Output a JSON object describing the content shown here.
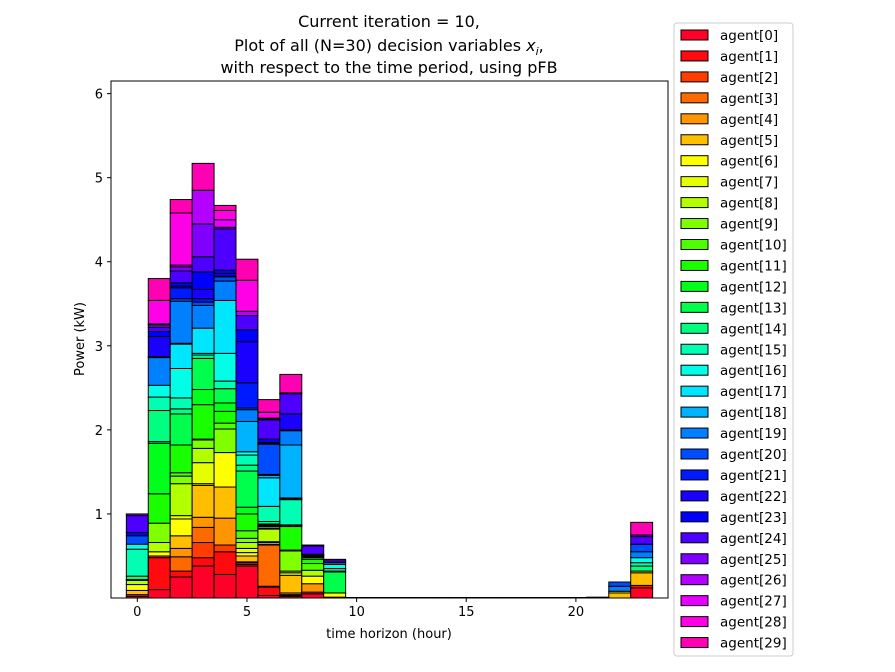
{
  "chart_data": {
    "type": "bar",
    "stacked": true,
    "title_lines": [
      "Current iteration = 10,",
      "Plot of all (N=30) decision variables x_i,",
      "with respect to the time period, using pFB"
    ],
    "title_math": {
      "prefix": "Plot of all (N=30) decision variables ",
      "var": "x",
      "sub": "i",
      "suffix": ","
    },
    "xlabel": "time horizon (hour)",
    "ylabel": "Power (kW)",
    "xlim": [
      -1.2,
      24.2
    ],
    "ylim": [
      0,
      6.15
    ],
    "xticks": [
      0,
      5,
      10,
      15,
      20
    ],
    "yticks": [
      1,
      2,
      3,
      4,
      5,
      6
    ],
    "x": [
      0,
      1,
      2,
      3,
      4,
      5,
      6,
      7,
      8,
      9,
      10,
      11,
      12,
      13,
      14,
      15,
      16,
      17,
      18,
      19,
      20,
      21,
      22,
      23
    ],
    "legend_location": "outside-right",
    "series": [
      {
        "name": "agent[0]",
        "color": "#ff0029",
        "values": [
          0.02,
          0.1,
          0.25,
          0.38,
          0.28,
          0.38,
          0.03,
          0.02,
          0.05,
          0.01,
          0,
          0,
          0,
          0,
          0,
          0,
          0,
          0,
          0,
          0,
          0,
          0.01,
          0,
          0.12
        ]
      },
      {
        "name": "agent[1]",
        "color": "#ff0a0f",
        "values": [
          0,
          0.38,
          0.07,
          0.1,
          0.27,
          0.02,
          0.1,
          0,
          0,
          0,
          0,
          0,
          0,
          0,
          0,
          0,
          0,
          0,
          0,
          0,
          0,
          0,
          0,
          0.03
        ]
      },
      {
        "name": "agent[2]",
        "color": "#ff3d00",
        "values": [
          0.02,
          0.02,
          0,
          0.18,
          0.08,
          0.02,
          0.01,
          0.01,
          0.02,
          0,
          0,
          0,
          0,
          0,
          0,
          0,
          0,
          0,
          0,
          0,
          0,
          0,
          0,
          0
        ]
      },
      {
        "name": "agent[3]",
        "color": "#ff6a00",
        "values": [
          0,
          0,
          0.17,
          0.18,
          0,
          0.01,
          0.49,
          0.01,
          0,
          0,
          0,
          0,
          0,
          0,
          0,
          0,
          0,
          0,
          0,
          0,
          0,
          0,
          0,
          0
        ]
      },
      {
        "name": "agent[4]",
        "color": "#ff9500",
        "values": [
          0,
          0,
          0.1,
          0.12,
          0.32,
          0,
          0,
          0.02,
          0.1,
          0,
          0,
          0,
          0,
          0,
          0,
          0,
          0,
          0,
          0,
          0,
          0,
          0,
          0,
          0
        ]
      },
      {
        "name": "agent[5]",
        "color": "#ffbf00",
        "values": [
          0.05,
          0,
          0.15,
          0.38,
          0.37,
          0.07,
          0.01,
          0.21,
          0,
          0,
          0,
          0,
          0,
          0,
          0,
          0,
          0,
          0,
          0,
          0,
          0,
          0,
          0.06,
          0.15
        ]
      },
      {
        "name": "agent[6]",
        "color": "#ffff00",
        "values": [
          0.07,
          0.05,
          0.2,
          0.02,
          0.41,
          0.04,
          0.02,
          0,
          0.09,
          0.05,
          0,
          0,
          0,
          0,
          0,
          0,
          0,
          0,
          0,
          0,
          0,
          0,
          0.02,
          0.02
        ]
      },
      {
        "name": "agent[7]",
        "color": "#e6ff00",
        "values": [
          0,
          0,
          0.04,
          0.25,
          0,
          0.05,
          0.01,
          0.03,
          0,
          0,
          0,
          0,
          0,
          0,
          0,
          0,
          0,
          0,
          0,
          0,
          0,
          0,
          0,
          0
        ]
      },
      {
        "name": "agent[8]",
        "color": "#b3ff00",
        "values": [
          0.05,
          0.11,
          0.38,
          0.17,
          0,
          0.07,
          0.15,
          0.02,
          0.07,
          0,
          0,
          0,
          0,
          0,
          0,
          0,
          0,
          0,
          0,
          0,
          0,
          0,
          0,
          0
        ]
      },
      {
        "name": "agent[9]",
        "color": "#80ff00",
        "values": [
          0,
          0.23,
          0.09,
          0.1,
          0.28,
          0.05,
          0.01,
          0.24,
          0,
          0,
          0,
          0,
          0,
          0,
          0,
          0,
          0,
          0,
          0,
          0,
          0,
          0,
          0,
          0
        ]
      },
      {
        "name": "agent[10]",
        "color": "#4dff00",
        "values": [
          0,
          0,
          0.04,
          0.01,
          0.07,
          0.09,
          0.02,
          0.01,
          0.08,
          0,
          0,
          0,
          0,
          0,
          0,
          0,
          0,
          0,
          0,
          0,
          0,
          0,
          0,
          0
        ]
      },
      {
        "name": "agent[11]",
        "color": "#1aff00",
        "values": [
          0,
          0.35,
          0.33,
          0.41,
          0.14,
          0.2,
          0.01,
          0.28,
          0.05,
          0,
          0,
          0,
          0,
          0,
          0,
          0,
          0,
          0,
          0,
          0,
          0,
          0,
          0,
          0
        ]
      },
      {
        "name": "agent[12]",
        "color": "#00ff1a",
        "values": [
          0,
          0.6,
          0,
          0.18,
          0.1,
          0.08,
          0.01,
          0,
          0.02,
          0,
          0,
          0,
          0,
          0,
          0,
          0,
          0,
          0,
          0,
          0,
          0,
          0,
          0,
          0
        ]
      },
      {
        "name": "agent[13]",
        "color": "#00ff4d",
        "values": [
          0.01,
          0.02,
          0.37,
          0.37,
          0.17,
          0.43,
          0.01,
          0.01,
          0.01,
          0.25,
          0,
          0,
          0,
          0,
          0,
          0,
          0,
          0,
          0,
          0,
          0,
          0,
          0,
          0
        ]
      },
      {
        "name": "agent[14]",
        "color": "#00ff80",
        "values": [
          0.04,
          0.37,
          0.06,
          0.04,
          0,
          0.07,
          0.03,
          0.01,
          0.01,
          0.01,
          0,
          0,
          0,
          0,
          0,
          0,
          0,
          0,
          0,
          0,
          0,
          0,
          0,
          0.06
        ]
      },
      {
        "name": "agent[15]",
        "color": "#00ffb3",
        "values": [
          0.32,
          0.16,
          0.13,
          0,
          0.09,
          0.12,
          0.18,
          0.3,
          0.01,
          0.03,
          0,
          0,
          0,
          0,
          0,
          0,
          0,
          0,
          0,
          0,
          0,
          0,
          0,
          0.04
        ]
      },
      {
        "name": "agent[16]",
        "color": "#00ffe6",
        "values": [
          0.06,
          0.14,
          0.35,
          0.02,
          0.33,
          0.04,
          0,
          0.01,
          0,
          0.05,
          0,
          0,
          0,
          0,
          0,
          0,
          0,
          0,
          0,
          0,
          0,
          0,
          0,
          0.06
        ]
      },
      {
        "name": "agent[17]",
        "color": "#00e6ff",
        "values": [
          0,
          0,
          0.29,
          0.3,
          0.63,
          0,
          0.34,
          0.01,
          0,
          0,
          0,
          0,
          0,
          0,
          0,
          0,
          0,
          0,
          0,
          0,
          0,
          0,
          0,
          0
        ]
      },
      {
        "name": "agent[18]",
        "color": "#00b3ff",
        "values": [
          0,
          0,
          0.01,
          0,
          0,
          0.36,
          0.03,
          0.63,
          0.01,
          0.02,
          0,
          0,
          0,
          0,
          0,
          0,
          0,
          0,
          0,
          0,
          0,
          0,
          0,
          0
        ]
      },
      {
        "name": "agent[19]",
        "color": "#0080ff",
        "values": [
          0,
          0.33,
          0.5,
          0.27,
          0.23,
          0.14,
          0.01,
          0.17,
          0,
          0,
          0,
          0,
          0,
          0,
          0,
          0,
          0,
          0,
          0,
          0,
          0,
          0,
          0.06,
          0.07
        ]
      },
      {
        "name": "agent[20]",
        "color": "#004dff",
        "values": [
          0.1,
          0,
          0.03,
          0.04,
          0.05,
          0.02,
          0.36,
          0.01,
          0,
          0,
          0,
          0,
          0,
          0,
          0,
          0,
          0,
          0,
          0,
          0,
          0,
          0,
          0.05,
          0.09
        ]
      },
      {
        "name": "agent[21]",
        "color": "#001aff",
        "values": [
          0,
          0.01,
          0.13,
          0.04,
          0.01,
          0.3,
          0.01,
          0,
          0,
          0,
          0,
          0,
          0,
          0,
          0,
          0,
          0,
          0,
          0,
          0,
          0,
          0,
          0,
          0
        ]
      },
      {
        "name": "agent[22]",
        "color": "#1a00ff",
        "values": [
          0,
          0.24,
          0.02,
          0.11,
          0.03,
          0.49,
          0.01,
          0.19,
          0,
          0,
          0,
          0,
          0,
          0,
          0,
          0,
          0,
          0,
          0,
          0,
          0,
          0,
          0,
          0
        ]
      },
      {
        "name": "agent[23]",
        "color": "#0000ff",
        "values": [
          0.04,
          0.06,
          0.04,
          0.21,
          0.04,
          0.14,
          0.04,
          0,
          0,
          0,
          0,
          0,
          0,
          0,
          0,
          0,
          0,
          0,
          0,
          0,
          0,
          0,
          0,
          0
        ]
      },
      {
        "name": "agent[24]",
        "color": "#4d00ff",
        "values": [
          0.2,
          0.05,
          0.14,
          0.18,
          0.49,
          0.17,
          0.23,
          0.24,
          0.1,
          0.02,
          0,
          0,
          0,
          0,
          0,
          0,
          0,
          0,
          0,
          0,
          0,
          0,
          0,
          0.09
        ]
      },
      {
        "name": "agent[25]",
        "color": "#8000ff",
        "values": [
          0.02,
          0.03,
          0.05,
          0.39,
          0.02,
          0,
          0.01,
          0.01,
          0.01,
          0.02,
          0,
          0,
          0,
          0,
          0,
          0,
          0,
          0,
          0,
          0,
          0,
          0,
          0,
          0.02
        ]
      },
      {
        "name": "agent[26]",
        "color": "#b300ff",
        "values": [
          0,
          0.01,
          0,
          0.4,
          0,
          0.05,
          0.01,
          0,
          0,
          0,
          0,
          0,
          0,
          0,
          0,
          0,
          0,
          0,
          0,
          0,
          0,
          0,
          0,
          0
        ]
      },
      {
        "name": "agent[27]",
        "color": "#e600ff",
        "values": [
          0,
          0,
          0.02,
          0,
          0.09,
          0,
          0,
          0,
          0,
          0,
          0,
          0,
          0,
          0,
          0,
          0,
          0,
          0,
          0,
          0,
          0,
          0,
          0,
          0
        ]
      },
      {
        "name": "agent[28]",
        "color": "#ff00e6",
        "values": [
          0,
          0.28,
          0.62,
          0,
          0.11,
          0.37,
          0.07,
          0,
          0,
          0,
          0,
          0,
          0,
          0,
          0,
          0,
          0,
          0,
          0,
          0,
          0,
          0,
          0,
          0
        ]
      },
      {
        "name": "agent[29]",
        "color": "#ff00b3",
        "values": [
          0,
          0.26,
          0.16,
          0.32,
          0.06,
          0.25,
          0.15,
          0.22,
          0,
          0,
          0,
          0,
          0,
          0,
          0,
          0,
          0,
          0,
          0,
          0,
          0,
          0,
          0,
          0.15
        ]
      }
    ]
  }
}
